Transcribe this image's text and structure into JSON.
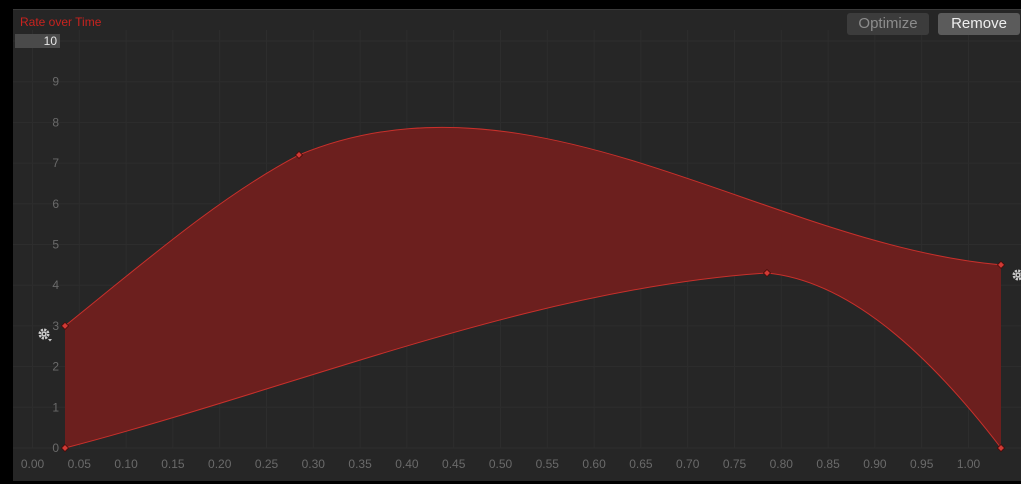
{
  "header": {
    "title": "Rate over Time",
    "optimize_label": "Optimize",
    "remove_label": "Remove",
    "y_max_value": "10"
  },
  "icons": {
    "left_settings": "gear-icon",
    "right_settings": "gear-icon"
  },
  "colors": {
    "background": "#262626",
    "curve_fill": "#701f1d",
    "curve_line": "#c8302b",
    "key_point": "#d03a35",
    "title": "#c8231f",
    "tick_text": "#6a6a6a"
  },
  "chart_data": {
    "type": "area",
    "title": "Rate over Time",
    "xlim": [
      0,
      1
    ],
    "ylim": [
      0,
      10
    ],
    "x_ticks": [
      "0.00",
      "0.05",
      "0.10",
      "0.15",
      "0.20",
      "0.25",
      "0.30",
      "0.35",
      "0.40",
      "0.45",
      "0.50",
      "0.55",
      "0.60",
      "0.65",
      "0.70",
      "0.75",
      "0.80",
      "0.85",
      "0.90",
      "0.95",
      "1.00"
    ],
    "y_ticks": [
      "0",
      "1",
      "2",
      "3",
      "4",
      "5",
      "6",
      "7",
      "8",
      "9",
      "10"
    ],
    "grid": true,
    "series": [
      {
        "keys": [
          {
            "x": 0.0,
            "y": 3.0,
            "out_slope": 18.5
          },
          {
            "x": 0.25,
            "y": 7.2,
            "in_slope": 12.0,
            "out_slope": 9.5
          },
          {
            "x": 1.0,
            "y": 4.5,
            "in_slope": -2.0
          }
        ]
      },
      {
        "keys": [
          {
            "x": 0.0,
            "y": 0.0,
            "out_slope": 6.0
          },
          {
            "x": 0.75,
            "y": 4.3,
            "in_slope": 1.5,
            "out_slope": -2.2
          },
          {
            "x": 1.0,
            "y": 0.0,
            "in_slope": -30.0
          }
        ]
      }
    ]
  }
}
